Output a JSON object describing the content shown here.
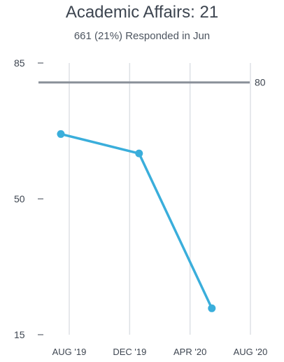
{
  "chart_data": {
    "type": "line",
    "title": "Academic Affairs: 21",
    "subtitle": "661 (21%) Responded in Jun",
    "xlabel": "",
    "ylabel": "",
    "ylim": [
      15,
      85
    ],
    "y_ticks": [
      "85",
      "50",
      "15"
    ],
    "x_ticks": [
      "AUG '19",
      "DEC '19",
      "APR '20",
      "AUG '20"
    ],
    "grid": "vertical",
    "target": {
      "value": 80,
      "label": "80",
      "color": "#8a9099"
    },
    "series": [
      {
        "color": "#3aaedb",
        "points": [
          {
            "x": "2019-07-15",
            "y": 66.7
          },
          {
            "x": "2019-12-20",
            "y": 61.7
          },
          {
            "x": "2020-05-15",
            "y": 21.8
          }
        ]
      }
    ],
    "colors": {
      "grid": "#dde1e5",
      "tick_text": "#3d4550",
      "title": "#3d4550"
    }
  }
}
